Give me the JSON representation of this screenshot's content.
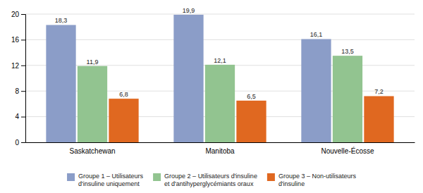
{
  "chart_data": {
    "type": "bar",
    "categories": [
      "Saskatchewan",
      "Manitoba",
      "Nouvelle-Écosse"
    ],
    "series": [
      {
        "name": "Groupe 1 – Utilisateurs\nd'insuline uniquement",
        "color": "#8B9DC8",
        "values": [
          18.3,
          19.9,
          16.1
        ],
        "value_labels": [
          "18,3",
          "19,9",
          "16,1"
        ]
      },
      {
        "name": "Groupe 2 – Utilisateurs d'insuline\net d'antihyperglycémiants oraux",
        "color": "#92C490",
        "values": [
          11.9,
          12.1,
          13.5
        ],
        "value_labels": [
          "11,9",
          "12,1",
          "13,5"
        ]
      },
      {
        "name": "Groupe 3 – Non-utilisateurs\nd'insuline",
        "color": "#E06820",
        "values": [
          6.8,
          6.5,
          7.2
        ],
        "value_labels": [
          "6,8",
          "6,5",
          "7,2"
        ]
      }
    ],
    "ylim": [
      0,
      20
    ],
    "yticks": [
      0,
      4,
      8,
      12,
      16,
      20
    ],
    "grid": true,
    "data_labels": true,
    "legend": "bottom"
  }
}
